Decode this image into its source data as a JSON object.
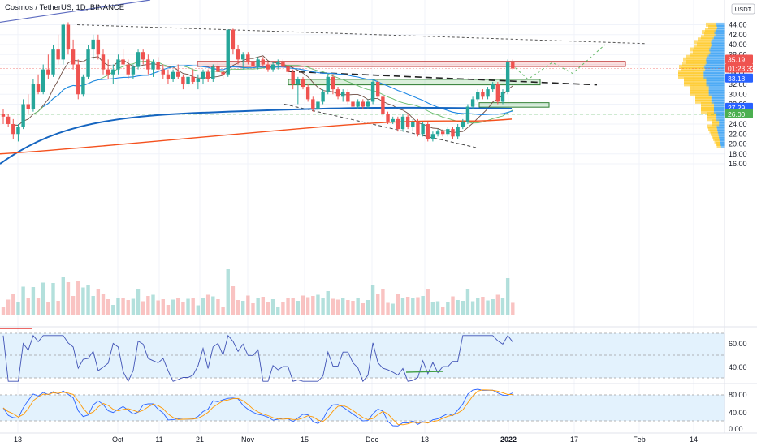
{
  "header": {
    "title": "Cosmos / TetherUS, 1D, BINANCE"
  },
  "price_axis": {
    "currency": "USDT",
    "labels": [
      "44.00",
      "42.00",
      "40.00",
      "38.00",
      "36.00",
      "34.00",
      "32.00",
      "30.00",
      "28.00",
      "26.00",
      "24.00",
      "22.00",
      "20.00",
      "18.00",
      "16.00"
    ],
    "tags": [
      {
        "text": "35.19",
        "color": "#ef5350"
      },
      {
        "text": "01:23:33",
        "color": "#ef5350"
      },
      {
        "text": "33.18",
        "color": "#2962ff"
      },
      {
        "text": "27.29",
        "color": "#2962ff"
      },
      {
        "text": "26.00",
        "color": "#4caf50"
      }
    ]
  },
  "rsi_axis": {
    "labels": [
      "60.00",
      "40.00"
    ]
  },
  "stoch_axis": {
    "labels": [
      "80.00",
      "40.00",
      "0.00"
    ]
  },
  "time_axis": {
    "labels": [
      "13",
      "Oct",
      "11",
      "21",
      "Nov",
      "15",
      "Dec",
      "13",
      "2022",
      "17",
      "Feb",
      "14"
    ]
  },
  "colors": {
    "up": "#26a69a",
    "down": "#ef5350",
    "ma_blue": "#1e88e5",
    "ma_red": "#f4511e",
    "ma_green": "#66bb6a",
    "ma_gray": "#9e9e9e",
    "panel_fill": "#e3f2fd",
    "stoch_k": "#2962ff",
    "stoch_d": "#ff9800"
  },
  "chart_data": [
    {
      "type": "candlestick",
      "title": "Cosmos / TetherUS, 1D, BINANCE",
      "ylim": [
        15,
        45
      ],
      "candles": [
        [
          26,
          27,
          24,
          25.5
        ],
        [
          25.5,
          26,
          23.5,
          24
        ],
        [
          24,
          25,
          21,
          22
        ],
        [
          22,
          24,
          20.5,
          23.5
        ],
        [
          23.5,
          29,
          23,
          28
        ],
        [
          28,
          30,
          26,
          27
        ],
        [
          27,
          33,
          26.5,
          32
        ],
        [
          32,
          34,
          30,
          30.5
        ],
        [
          30.5,
          36,
          30,
          35
        ],
        [
          35,
          38,
          33,
          34
        ],
        [
          34,
          40,
          33.5,
          39
        ],
        [
          39,
          42,
          36,
          37
        ],
        [
          37,
          44.3,
          36,
          44
        ],
        [
          44,
          44.5,
          38,
          39
        ],
        [
          39,
          41,
          35,
          36
        ],
        [
          36,
          37,
          29,
          30
        ],
        [
          30,
          34,
          29.5,
          33.5
        ],
        [
          33.5,
          40,
          33,
          39
        ],
        [
          39,
          42,
          37,
          41
        ],
        [
          41,
          42,
          37,
          38
        ],
        [
          38,
          39,
          34,
          35
        ],
        [
          35,
          37,
          33,
          34
        ],
        [
          34,
          36,
          32,
          35
        ],
        [
          35,
          38,
          34,
          37
        ],
        [
          37,
          39,
          35,
          36
        ],
        [
          36,
          37,
          33,
          34
        ],
        [
          34,
          36,
          33,
          35.5
        ],
        [
          35.5,
          39,
          35,
          38.5
        ],
        [
          38.5,
          39,
          36,
          37
        ],
        [
          37,
          38,
          34,
          35
        ],
        [
          35,
          37,
          33.5,
          36.5
        ],
        [
          36.5,
          37.5,
          34.5,
          35
        ],
        [
          35,
          36,
          33,
          34
        ],
        [
          34,
          35,
          32,
          33
        ],
        [
          33,
          35,
          32.5,
          34.5
        ],
        [
          34.5,
          36,
          33,
          33.5
        ],
        [
          33.5,
          34,
          31,
          32
        ],
        [
          32,
          34,
          31.5,
          33.5
        ],
        [
          33.5,
          35,
          32,
          32.5
        ],
        [
          32.5,
          34,
          31,
          33
        ],
        [
          33,
          35,
          32,
          34.5
        ],
        [
          34.5,
          35,
          32.5,
          33
        ],
        [
          33,
          36,
          32.5,
          35.5
        ],
        [
          35.5,
          36.5,
          34,
          34.5
        ],
        [
          34.5,
          35,
          33,
          34
        ],
        [
          34,
          43,
          33.5,
          43
        ],
        [
          43,
          43.2,
          38,
          39
        ],
        [
          39,
          40,
          36,
          37
        ],
        [
          37,
          38.5,
          35,
          38
        ],
        [
          38,
          38.5,
          36,
          36.5
        ],
        [
          36.5,
          37,
          35,
          35.5
        ],
        [
          35.5,
          37.5,
          35,
          37
        ],
        [
          37,
          37.5,
          35.5,
          36
        ],
        [
          36,
          36.5,
          34.5,
          35
        ],
        [
          35,
          36.5,
          34.5,
          36
        ],
        [
          36,
          37,
          35,
          36.5
        ],
        [
          36.5,
          37,
          35,
          35.5
        ],
        [
          35.5,
          36,
          34,
          34.5
        ],
        [
          34.5,
          35,
          31,
          32
        ],
        [
          32,
          33.5,
          28,
          33
        ],
        [
          33,
          33.5,
          31,
          31.5
        ],
        [
          31.5,
          32,
          28.5,
          29
        ],
        [
          29,
          29.5,
          26.5,
          27
        ],
        [
          27,
          29,
          26,
          28.5
        ],
        [
          28.5,
          31,
          28,
          30.5
        ],
        [
          30.5,
          34,
          30,
          33.5
        ],
        [
          33.5,
          34,
          30,
          31
        ],
        [
          31,
          31.5,
          29,
          29.5
        ],
        [
          29.5,
          31,
          28.5,
          30.5
        ],
        [
          30.5,
          31,
          28,
          28.5
        ],
        [
          28.5,
          29,
          27,
          27.5
        ],
        [
          27.5,
          29,
          27,
          28.5
        ],
        [
          28.5,
          29,
          27,
          27.5
        ],
        [
          27.5,
          29,
          27,
          28.5
        ],
        [
          28.5,
          33,
          28,
          32.5
        ],
        [
          32.5,
          33,
          29,
          29.5
        ],
        [
          29.5,
          30,
          25.5,
          26
        ],
        [
          26,
          26.5,
          24,
          24.5
        ],
        [
          24.5,
          25.5,
          24,
          25
        ],
        [
          25,
          25.5,
          22.5,
          23
        ],
        [
          23,
          26,
          22.5,
          25.5
        ],
        [
          25.5,
          26,
          23,
          23.5
        ],
        [
          23.5,
          25,
          22.5,
          24.5
        ],
        [
          24.5,
          25,
          21.5,
          22
        ],
        [
          22,
          24.5,
          21.5,
          24
        ],
        [
          24,
          24.5,
          20.5,
          21
        ],
        [
          21,
          22.5,
          20.5,
          22
        ],
        [
          22,
          23,
          21.5,
          22.5
        ],
        [
          22.5,
          23,
          21.5,
          22
        ],
        [
          22,
          23.5,
          21.5,
          23
        ],
        [
          23,
          23.5,
          21,
          21.5
        ],
        [
          21.5,
          24,
          21,
          23.5
        ],
        [
          23.5,
          25,
          23,
          24.5
        ],
        [
          24.5,
          28,
          24,
          27.5
        ],
        [
          27.5,
          29.5,
          27,
          29
        ],
        [
          29,
          31,
          28.5,
          30.5
        ],
        [
          30.5,
          31,
          29,
          29.5
        ],
        [
          29.5,
          31.5,
          29,
          31
        ],
        [
          31,
          32.5,
          30.5,
          32
        ],
        [
          32,
          32.5,
          28,
          28.5
        ],
        [
          28.5,
          31,
          28,
          30.5
        ],
        [
          30.5,
          37,
          30,
          36.5
        ],
        [
          36.5,
          37,
          35,
          35.19
        ]
      ]
    },
    {
      "type": "line",
      "title": "RSI",
      "ylim": [
        28,
        72
      ]
    },
    {
      "type": "line",
      "title": "Stoch RSI",
      "ylim": [
        -10,
        105
      ]
    }
  ]
}
